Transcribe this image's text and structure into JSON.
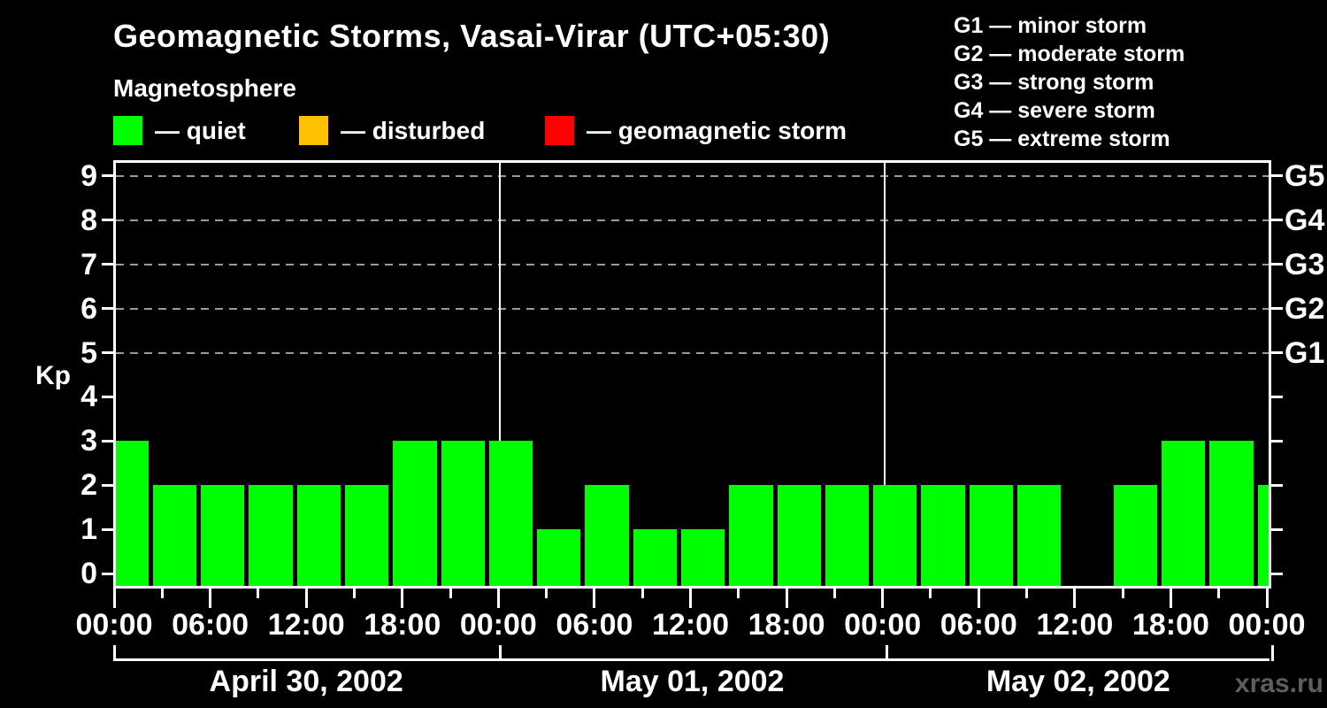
{
  "header": {
    "title": "Geomagnetic Storms, Vasai-Virar (UTC+05:30)",
    "subtitle": "Magnetosphere"
  },
  "legend": {
    "items": [
      {
        "name": "quiet",
        "label": "— quiet",
        "color": "#00ff00"
      },
      {
        "name": "disturbed",
        "label": "— disturbed",
        "color": "#ffc000"
      },
      {
        "name": "geomagnetic-storm",
        "label": "— geomagnetic storm",
        "color": "#ff0000"
      }
    ]
  },
  "g_scale_legend": {
    "lines": [
      "G1 — minor storm",
      "G2 — moderate storm",
      "G3 — strong storm",
      "G4 — severe storm",
      "G5 — extreme storm"
    ]
  },
  "watermark": "xras.ru",
  "chart_data": {
    "type": "bar",
    "title": "Geomagnetic Storms, Vasai-Virar (UTC+05:30)",
    "subtitle": "Magnetosphere",
    "ylabel": "Kp",
    "ylim": [
      0,
      9
    ],
    "y_ticks": [
      0,
      1,
      2,
      3,
      4,
      5,
      6,
      7,
      8,
      9
    ],
    "grid": "horizontal dashed gray lines at Kp 5-9",
    "legend_position": "top-left",
    "bar_color": "#00ff00",
    "interval_hours": 3,
    "x_tick_labels": [
      "00:00",
      "06:00",
      "12:00",
      "18:00",
      "00:00",
      "06:00",
      "12:00",
      "18:00",
      "00:00",
      "06:00",
      "12:00",
      "18:00",
      "00:00"
    ],
    "right_axis": [
      {
        "label": "G1",
        "kp": 5
      },
      {
        "label": "G2",
        "kp": 6
      },
      {
        "label": "G3",
        "kp": 7
      },
      {
        "label": "G4",
        "kp": 8
      },
      {
        "label": "G5",
        "kp": 9
      }
    ],
    "days": [
      {
        "date": "April 30, 2002",
        "kp": [
          3,
          2,
          2,
          2,
          2,
          2,
          3,
          3
        ]
      },
      {
        "date": "May 01, 2002",
        "kp": [
          3,
          1,
          2,
          1,
          1,
          2,
          2,
          2
        ]
      },
      {
        "date": "May 02, 2002",
        "kp": [
          2,
          2,
          2,
          2,
          0,
          2,
          3,
          3
        ]
      }
    ],
    "next_day_partial_kp": 2
  }
}
